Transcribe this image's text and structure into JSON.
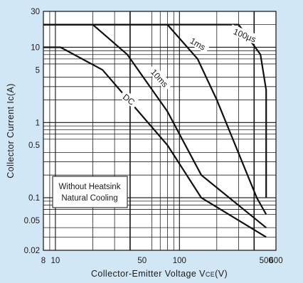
{
  "chart_data": {
    "type": "line",
    "title": "",
    "xlabel": "Collector-Emitter Voltage VCE(V)",
    "xlabel_parts": {
      "main": "Collector-Emitter Voltage V",
      "sub": "CE",
      "tail": "(V)"
    },
    "ylabel": "Collector Current Ic(A)",
    "x_scale": "log",
    "y_scale": "log",
    "xlim": [
      8,
      600
    ],
    "ylim": [
      0.02,
      30
    ],
    "grid": true,
    "x_ticks": [
      {
        "value": 8,
        "label": "8"
      },
      {
        "value": 10,
        "label": "10"
      },
      {
        "value": 50,
        "label": "50"
      },
      {
        "value": 100,
        "label": "100"
      },
      {
        "value": 500,
        "label": "500"
      },
      {
        "value": 600,
        "label": "600"
      }
    ],
    "y_ticks": [
      {
        "value": 30,
        "label": "30"
      },
      {
        "value": 10,
        "label": "10"
      },
      {
        "value": 5,
        "label": "5"
      },
      {
        "value": 1,
        "label": "1"
      },
      {
        "value": 0.5,
        "label": "0.5"
      },
      {
        "value": 0.1,
        "label": "0.1"
      },
      {
        "value": 0.05,
        "label": "0.05"
      },
      {
        "value": 0.02,
        "label": "0.02"
      }
    ],
    "series": [
      {
        "name": "100µs",
        "points": [
          [
            8,
            20
          ],
          [
            300,
            20
          ],
          [
            450,
            8
          ],
          [
            500,
            2.7
          ],
          [
            500,
            0.1
          ]
        ]
      },
      {
        "name": "1ms",
        "points": [
          [
            8,
            20
          ],
          [
            80,
            20
          ],
          [
            140,
            7
          ],
          [
            200,
            2
          ],
          [
            420,
            0.1
          ],
          [
            500,
            0.06
          ]
        ]
      },
      {
        "name": "10ms",
        "points": [
          [
            8,
            20
          ],
          [
            20,
            20
          ],
          [
            38,
            8
          ],
          [
            80,
            1.4
          ],
          [
            150,
            0.2
          ],
          [
            500,
            0.04
          ]
        ]
      },
      {
        "name": "DC",
        "points": [
          [
            8,
            10
          ],
          [
            11,
            10
          ],
          [
            24,
            5
          ],
          [
            80,
            0.5
          ],
          [
            150,
            0.1
          ],
          [
            500,
            0.03
          ]
        ]
      }
    ],
    "annotations": [
      {
        "text": "100µs"
      },
      {
        "text": "1ms"
      },
      {
        "text": "10ms"
      },
      {
        "text": "DC"
      }
    ],
    "note_box": {
      "line1": "Without Heatsink",
      "line2": "Natural Cooling"
    },
    "colors": {
      "background": "#d2e7f6",
      "plot_background": "#ffffff",
      "line": "#111111"
    }
  }
}
